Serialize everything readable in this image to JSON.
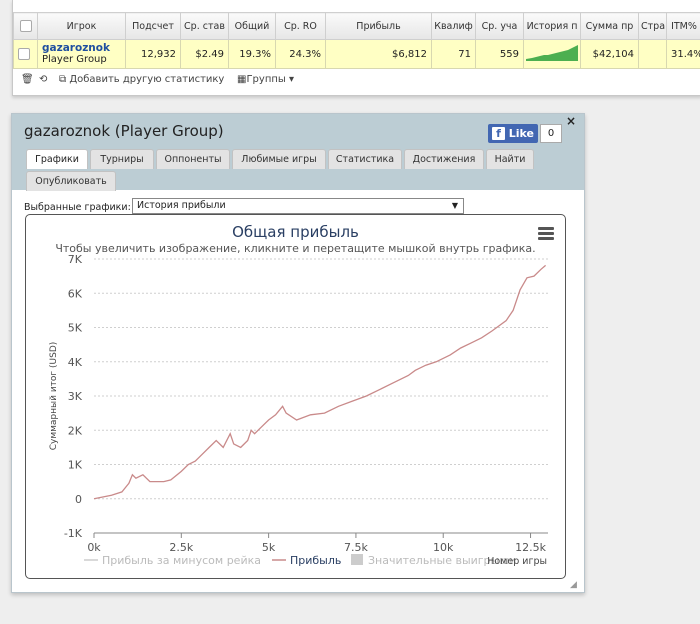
{
  "table": {
    "headers": [
      "Игрок",
      "Подсчет",
      "Ср. став",
      "Общий",
      "Ср. RO",
      "Прибыль",
      "Квалиф",
      "Ср. уча",
      "История п",
      "Сумма пр",
      "Стра",
      "ITM%"
    ],
    "row": {
      "player_name": "gazaroznok",
      "player_group": "Player Group",
      "count": "12,932",
      "avg_stake": "$2.49",
      "total": "19.3%",
      "avg_roi": "24.3%",
      "profit": "$6,812",
      "qualified": "71",
      "avg_participants": "559",
      "prize_sum": "$42,104",
      "itm": "31.4%"
    }
  },
  "toolbar": {
    "add_stats": "Добавить другую статистику",
    "groups": "Группы"
  },
  "window": {
    "title": "gazaroznok (Player Group)",
    "like_label": "Like",
    "like_count": "0",
    "close": "×",
    "tabs": [
      "Графики",
      "Турниры",
      "Оппоненты",
      "Любимые игры",
      "Статистика",
      "Достижения",
      "Найти",
      "Опубликовать"
    ],
    "selected_label": "Выбранные графики:",
    "selected_value": "История прибыли"
  },
  "chart_data": {
    "type": "line",
    "title": "Общая прибыль",
    "subtitle": "Чтобы увеличить изображение, кликните и перетащите мышкой внутрь графика.",
    "xlabel": "Номер игры",
    "ylabel": "Суммарный итог (USD)",
    "xlim": [
      0,
      13000
    ],
    "ylim": [
      -1000,
      7000
    ],
    "x_ticks": [
      "0k",
      "2.5k",
      "5k",
      "7.5k",
      "10k",
      "12.5k"
    ],
    "y_ticks": [
      "-1K",
      "0",
      "1K",
      "2K",
      "3K",
      "4K",
      "5K",
      "6K",
      "7K"
    ],
    "legend": [
      "Прибыль за минусом рейка",
      "Прибыль",
      "Значительные выигрыши"
    ],
    "legend_placement": "bottom",
    "series": [
      {
        "name": "Прибыль",
        "color": "#c98a8a",
        "points": [
          [
            0,
            0
          ],
          [
            500,
            100
          ],
          [
            800,
            200
          ],
          [
            1000,
            450
          ],
          [
            1100,
            700
          ],
          [
            1200,
            600
          ],
          [
            1400,
            700
          ],
          [
            1600,
            500
          ],
          [
            2000,
            500
          ],
          [
            2200,
            550
          ],
          [
            2500,
            800
          ],
          [
            2700,
            1000
          ],
          [
            2900,
            1100
          ],
          [
            3100,
            1300
          ],
          [
            3300,
            1500
          ],
          [
            3500,
            1700
          ],
          [
            3700,
            1500
          ],
          [
            3900,
            1900
          ],
          [
            4000,
            1600
          ],
          [
            4200,
            1500
          ],
          [
            4400,
            1700
          ],
          [
            4500,
            2000
          ],
          [
            4600,
            1900
          ],
          [
            4800,
            2100
          ],
          [
            5000,
            2300
          ],
          [
            5200,
            2450
          ],
          [
            5400,
            2700
          ],
          [
            5500,
            2500
          ],
          [
            5800,
            2300
          ],
          [
            6200,
            2450
          ],
          [
            6600,
            2500
          ],
          [
            7000,
            2700
          ],
          [
            7400,
            2850
          ],
          [
            7800,
            3000
          ],
          [
            8200,
            3200
          ],
          [
            8600,
            3400
          ],
          [
            9000,
            3600
          ],
          [
            9200,
            3750
          ],
          [
            9500,
            3900
          ],
          [
            9800,
            4000
          ],
          [
            10200,
            4200
          ],
          [
            10500,
            4400
          ],
          [
            10800,
            4550
          ],
          [
            11100,
            4700
          ],
          [
            11400,
            4900
          ],
          [
            11800,
            5200
          ],
          [
            12000,
            5500
          ],
          [
            12200,
            6100
          ],
          [
            12400,
            6450
          ],
          [
            12600,
            6500
          ],
          [
            12800,
            6700
          ],
          [
            12932,
            6812
          ]
        ]
      }
    ]
  }
}
